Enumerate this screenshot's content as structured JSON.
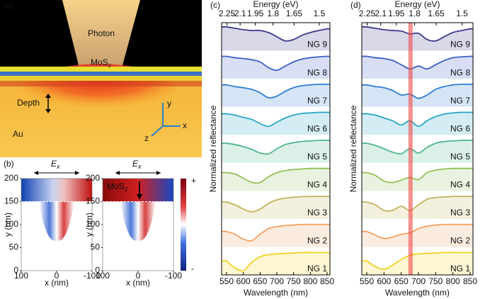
{
  "panel_a": {
    "label": "(a)",
    "photon": "Photon",
    "mos2": {
      "text": "MoS",
      "sub": "2"
    },
    "depth": "Depth",
    "metal": "Au",
    "axes": [
      "y",
      "x",
      "z"
    ]
  },
  "panel_b": {
    "label": "(b)",
    "field": {
      "text": "E",
      "sub": "x"
    },
    "mos2": {
      "text": "MoS",
      "sub": "2"
    },
    "ylabel": "y (nm)",
    "xlabel": "x (nm)",
    "ylim": [
      0,
      200
    ],
    "yticks": [
      0,
      50,
      100,
      150,
      200
    ],
    "xlim": [
      100,
      -100
    ],
    "xticks": [
      100,
      0,
      -100
    ],
    "colorbar": [
      "+",
      "-"
    ]
  },
  "chart_data": [
    {
      "type": "line",
      "label": "(c)",
      "top_title": "Energy (eV)",
      "x_label": "Wavelength (nm)",
      "y_label": "Normalized reflectance",
      "x": [
        550,
        575,
        600,
        625,
        650,
        675,
        700,
        725,
        750,
        775,
        800,
        825,
        850
      ],
      "xlim": [
        550,
        850
      ],
      "xticks": [
        550,
        600,
        650,
        700,
        750,
        800,
        850
      ],
      "top_ticks": [
        2.25,
        2.1,
        1.95,
        1.8,
        1.65,
        1.5
      ],
      "ylim": [
        0,
        1
      ],
      "series": [
        {
          "name": "NG 9",
          "color": "#3e3a8e",
          "values": [
            0.85,
            0.8,
            0.75,
            0.72,
            0.72,
            0.65,
            0.5,
            0.35,
            0.4,
            0.55,
            0.65,
            0.72,
            0.78
          ]
        },
        {
          "name": "NG 8",
          "color": "#3a5fc6",
          "values": [
            0.8,
            0.75,
            0.72,
            0.68,
            0.6,
            0.4,
            0.3,
            0.45,
            0.6,
            0.7,
            0.75,
            0.78,
            0.8
          ]
        },
        {
          "name": "NG 7",
          "color": "#2d7fd2",
          "values": [
            0.78,
            0.72,
            0.68,
            0.62,
            0.5,
            0.32,
            0.38,
            0.55,
            0.68,
            0.75,
            0.78,
            0.8,
            0.8
          ]
        },
        {
          "name": "NG 6",
          "color": "#2aa6c6",
          "values": [
            0.75,
            0.7,
            0.62,
            0.55,
            0.4,
            0.3,
            0.45,
            0.6,
            0.7,
            0.76,
            0.78,
            0.8,
            0.8
          ]
        },
        {
          "name": "NG 5",
          "color": "#4db78c",
          "values": [
            0.7,
            0.65,
            0.58,
            0.48,
            0.35,
            0.32,
            0.5,
            0.65,
            0.72,
            0.76,
            0.78,
            0.8,
            0.8
          ]
        },
        {
          "name": "NG 4",
          "color": "#92bf58",
          "values": [
            0.65,
            0.6,
            0.45,
            0.3,
            0.3,
            0.5,
            0.65,
            0.72,
            0.76,
            0.78,
            0.8,
            0.8,
            0.8
          ]
        },
        {
          "name": "NG 3",
          "color": "#c2b25a",
          "values": [
            0.6,
            0.5,
            0.35,
            0.25,
            0.35,
            0.55,
            0.68,
            0.74,
            0.77,
            0.79,
            0.8,
            0.8,
            0.8
          ]
        },
        {
          "name": "NG 2",
          "color": "#f2a062",
          "values": [
            0.55,
            0.45,
            0.28,
            0.22,
            0.45,
            0.65,
            0.72,
            0.76,
            0.78,
            0.8,
            0.8,
            0.8,
            0.8
          ]
        },
        {
          "name": "NG 1",
          "color": "#f0d21e",
          "values": [
            0.5,
            0.25,
            0.15,
            0.45,
            0.65,
            0.72,
            0.75,
            0.77,
            0.78,
            0.8,
            0.8,
            0.8,
            0.8
          ]
        }
      ]
    },
    {
      "type": "line",
      "label": "(d)",
      "top_title": "Energy (eV)",
      "x_label": "Wavelength (nm)",
      "y_label": "Normalized reflectance",
      "x": [
        550,
        575,
        600,
        625,
        650,
        675,
        700,
        725,
        750,
        775,
        800,
        825,
        850
      ],
      "xlim": [
        550,
        850
      ],
      "xticks": [
        550,
        600,
        650,
        700,
        750,
        800,
        850
      ],
      "top_ticks": [
        2.25,
        2.1,
        1.95,
        1.8,
        1.65,
        1.5
      ],
      "ylim": [
        0,
        1
      ],
      "highlight": 677,
      "highlight_color": "#f04848",
      "series": [
        {
          "name": "NG 9",
          "color": "#3e3a8e",
          "values": [
            0.85,
            0.8,
            0.75,
            0.72,
            0.7,
            0.6,
            0.62,
            0.4,
            0.35,
            0.5,
            0.65,
            0.72,
            0.78
          ]
        },
        {
          "name": "NG 8",
          "color": "#3a5fc6",
          "values": [
            0.8,
            0.75,
            0.72,
            0.65,
            0.5,
            0.35,
            0.45,
            0.35,
            0.5,
            0.65,
            0.75,
            0.78,
            0.8
          ]
        },
        {
          "name": "NG 7",
          "color": "#2d7fd2",
          "values": [
            0.78,
            0.72,
            0.68,
            0.58,
            0.42,
            0.45,
            0.3,
            0.42,
            0.62,
            0.72,
            0.78,
            0.8,
            0.8
          ]
        },
        {
          "name": "NG 6",
          "color": "#2aa6c6",
          "values": [
            0.75,
            0.7,
            0.6,
            0.5,
            0.35,
            0.5,
            0.3,
            0.5,
            0.65,
            0.74,
            0.78,
            0.8,
            0.8
          ]
        },
        {
          "name": "NG 5",
          "color": "#4db78c",
          "values": [
            0.7,
            0.62,
            0.5,
            0.38,
            0.32,
            0.5,
            0.35,
            0.55,
            0.7,
            0.76,
            0.78,
            0.8,
            0.8
          ]
        },
        {
          "name": "NG 4",
          "color": "#92bf58",
          "values": [
            0.65,
            0.55,
            0.35,
            0.3,
            0.38,
            0.48,
            0.4,
            0.65,
            0.74,
            0.78,
            0.8,
            0.8,
            0.8
          ]
        },
        {
          "name": "NG 3",
          "color": "#c2b25a",
          "values": [
            0.6,
            0.5,
            0.3,
            0.3,
            0.45,
            0.3,
            0.5,
            0.7,
            0.76,
            0.78,
            0.8,
            0.8,
            0.8
          ]
        },
        {
          "name": "NG 2",
          "color": "#f2a062",
          "values": [
            0.55,
            0.42,
            0.3,
            0.35,
            0.45,
            0.5,
            0.65,
            0.74,
            0.78,
            0.8,
            0.8,
            0.8,
            0.8
          ]
        },
        {
          "name": "NG 1",
          "color": "#f0d21e",
          "values": [
            0.5,
            0.3,
            0.2,
            0.35,
            0.55,
            0.7,
            0.75,
            0.77,
            0.78,
            0.8,
            0.8,
            0.8,
            0.8
          ]
        }
      ]
    }
  ]
}
